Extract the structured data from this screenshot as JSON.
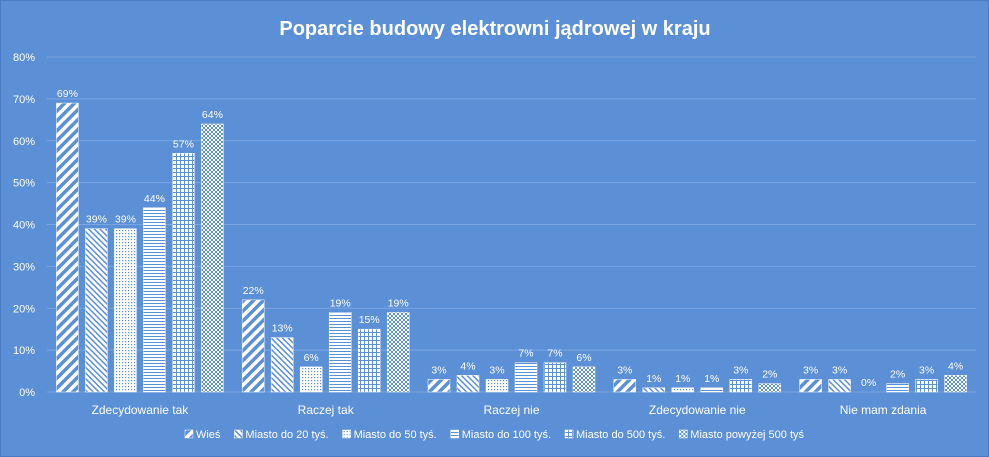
{
  "chart_data": {
    "type": "bar",
    "title": "Poparcie budowy elektrowni jądrowej w kraju",
    "xlabel": "",
    "ylabel": "",
    "ylim": [
      0,
      80
    ],
    "ytick_labels": [
      "0%",
      "10%",
      "20%",
      "30%",
      "40%",
      "50%",
      "60%",
      "70%",
      "80%"
    ],
    "grid": true,
    "legend_position": "bottom",
    "categories": [
      "Zdecydowanie tak",
      "Raczej tak",
      "Raczej nie",
      "Zdecydowanie nie",
      "Nie mam zdania"
    ],
    "series": [
      {
        "name": "Wieś",
        "values": [
          69,
          22,
          3,
          3,
          3
        ],
        "labels": [
          "69%",
          "22%",
          "3%",
          "3%",
          "3%"
        ],
        "pattern": "diag-wide"
      },
      {
        "name": "Miasto do 20 tyś.",
        "values": [
          39,
          13,
          4,
          1,
          3
        ],
        "labels": [
          "39%",
          "13%",
          "4%",
          "1%",
          "3%"
        ],
        "pattern": "diag-fine"
      },
      {
        "name": "Miasto do 50 tyś.",
        "values": [
          39,
          6,
          3,
          1,
          0
        ],
        "labels": [
          "39%",
          "6%",
          "3%",
          "1%",
          "0%"
        ],
        "pattern": "dots"
      },
      {
        "name": "Miasto do 100 tyś.",
        "values": [
          44,
          19,
          7,
          1,
          2
        ],
        "labels": [
          "44%",
          "19%",
          "7%",
          "1%",
          "2%"
        ],
        "pattern": "horiz"
      },
      {
        "name": "Miasto do 500 tyś.",
        "values": [
          57,
          15,
          7,
          3,
          3
        ],
        "labels": [
          "57%",
          "15%",
          "7%",
          "3%",
          "3%"
        ],
        "pattern": "grid"
      },
      {
        "name": "Miasto powyżej 500 tyś",
        "values": [
          64,
          19,
          6,
          2,
          4
        ],
        "labels": [
          "64%",
          "19%",
          "6%",
          "2%",
          "4%"
        ],
        "pattern": "checker"
      }
    ],
    "colors": {
      "background": "#5b8fd6",
      "bar_fill": "#ffffff",
      "gridline": "#7aa6e3",
      "text": "#ffffff"
    }
  }
}
